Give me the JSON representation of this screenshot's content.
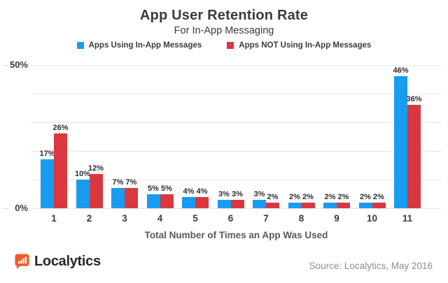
{
  "header": {
    "title": "App User Retention Rate",
    "subtitle": "For In-App Messaging"
  },
  "legend": [
    {
      "label": "Apps Using In-App Messages",
      "color": "#189CF0"
    },
    {
      "label": "Apps NOT Using In-App Messages",
      "color": "#D8383E"
    }
  ],
  "chart_data": {
    "type": "bar",
    "title": "App User Retention Rate",
    "subtitle": "For In-App Messaging",
    "categories": [
      "1",
      "2",
      "3",
      "4",
      "5",
      "6",
      "7",
      "8",
      "9",
      "10",
      "11"
    ],
    "series": [
      {
        "name": "Apps Using In-App Messages",
        "color": "#189CF0",
        "values": [
          17,
          10,
          7,
          5,
          4,
          3,
          3,
          2,
          2,
          2,
          46
        ]
      },
      {
        "name": "Apps NOT Using In-App Messages",
        "color": "#D8383E",
        "values": [
          26,
          12,
          7,
          5,
          4,
          3,
          2,
          2,
          2,
          2,
          36
        ]
      }
    ],
    "xlabel": "Total Number of Times an App Was Used",
    "ylabel": "",
    "ylim": [
      0,
      50
    ],
    "ytick_step": 10,
    "visible_ytick_labels": [
      "0%",
      "50%"
    ],
    "value_label_suffix": "%",
    "grid": true,
    "legend_position": "top",
    "grid_color": "#e6e6e6"
  },
  "axes": {
    "y_top_label": "50%",
    "y_bottom_label": "0%",
    "x_title": "Total Number of Times an App Was Used"
  },
  "footer": {
    "brand": "Localytics",
    "brand_color": "#F15B2A",
    "source": "Source: Localytics, May 2016"
  }
}
